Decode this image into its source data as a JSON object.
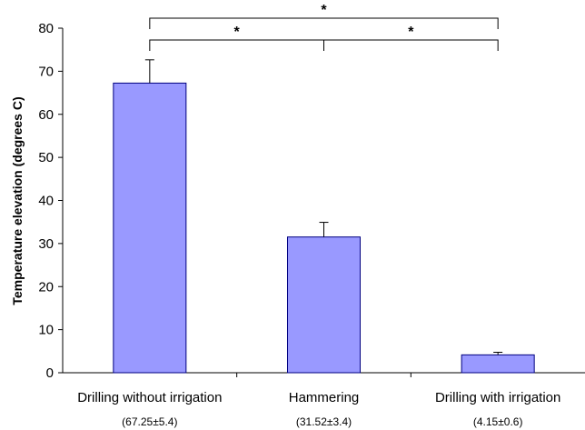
{
  "chart_data": {
    "type": "bar",
    "categories": [
      "Drilling without irrigation",
      "Hammering",
      "Drilling with irrigation"
    ],
    "category_sublabels": [
      "(67.25±5.4)",
      "(31.52±3.4)",
      "(4.15±0.6)"
    ],
    "values": [
      67.25,
      31.52,
      4.15
    ],
    "errors": [
      5.4,
      3.4,
      0.6
    ],
    "ylabel": "Temperature elevation (degrees C)",
    "xlabel": "",
    "ylim": [
      0,
      80
    ],
    "yticks": [
      0,
      10,
      20,
      30,
      40,
      50,
      60,
      70,
      80
    ],
    "bar_color": "#9999ff",
    "bar_edge_color": "#000080",
    "grid": false,
    "significance": [
      {
        "from": 0,
        "to": 2,
        "label": "*",
        "level": 2
      },
      {
        "from": 0,
        "to": 1,
        "label": "*",
        "level": 1
      },
      {
        "from": 1,
        "to": 2,
        "label": "*",
        "level": 1
      }
    ]
  }
}
